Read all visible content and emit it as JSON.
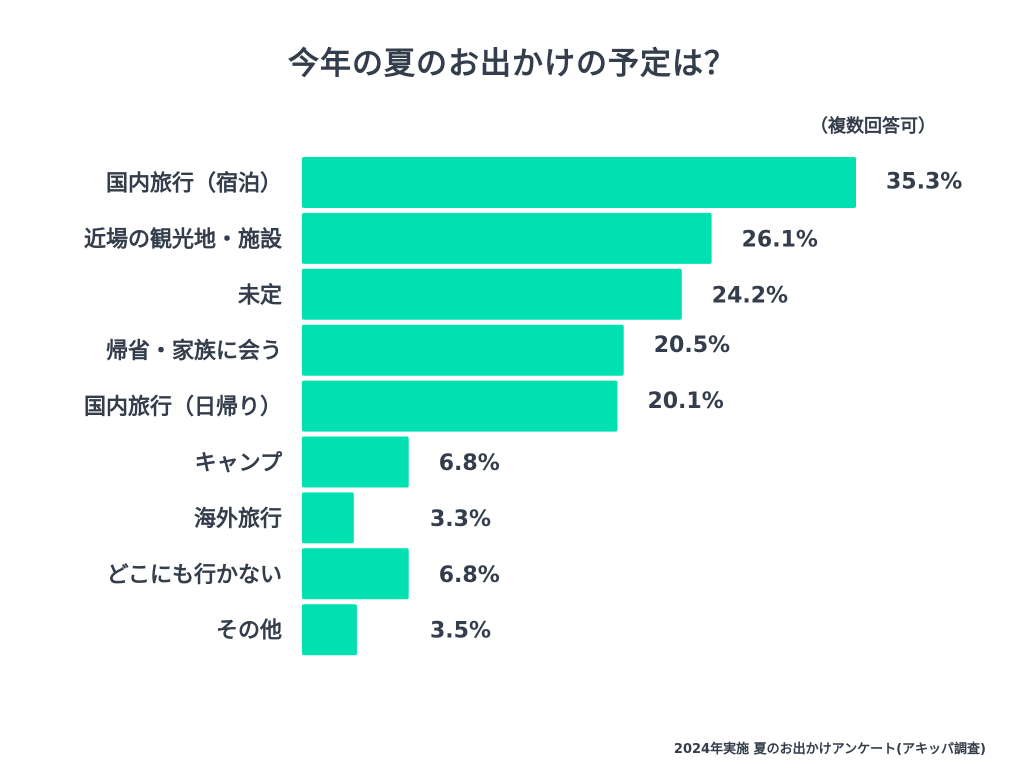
{
  "chart_data": {
    "type": "bar",
    "orientation": "horizontal",
    "title": "今年の夏のお出かけの予定は？",
    "note": "（複数回答可）",
    "source": "2024年実施 夏のお出かけアンケート(アキッパ調査)",
    "categories": [
      "国内旅行（宿泊）",
      "近場の観光地・施設",
      "未定",
      "帰省・家族に会う",
      "国内旅行（日帰り）",
      "キャンプ",
      "海外旅行",
      "どこにも行かない",
      "その他"
    ],
    "values": [
      35.3,
      26.1,
      24.2,
      20.5,
      20.1,
      6.8,
      3.3,
      6.8,
      3.5
    ],
    "value_labels": [
      "35.3%",
      "26.1%",
      "24.2%",
      "20.5%",
      "20.1%",
      "6.8%",
      "3.3%",
      "6.8%",
      "3.5%"
    ],
    "unit": "%",
    "xlim": [
      0,
      35.3
    ],
    "bar_color": "#00e0b0",
    "text_color": "#333d4b"
  }
}
